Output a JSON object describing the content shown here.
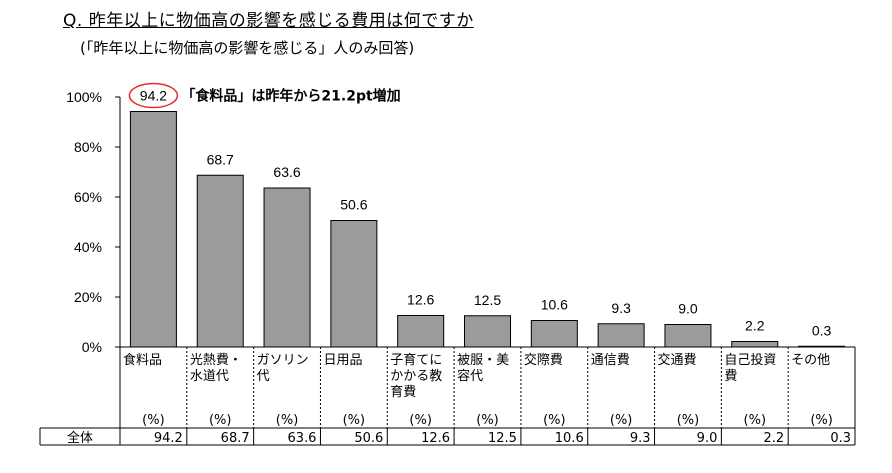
{
  "title": "Q. 昨年以上に物価高の影響を感じる費用は何ですか",
  "subtitle": "(「昨年以上に物価高の影響を感じる」人のみ回答)",
  "annotation": "「食料品」は昨年から21.2pt増加",
  "colors": {
    "bar": "#9b9b9b",
    "bar_border": "#000000",
    "circle": "#e0302a"
  },
  "chart_data": {
    "type": "bar",
    "categories": [
      [
        "食料品"
      ],
      [
        "光熱費・",
        "水道代"
      ],
      [
        "ガソリン",
        "代"
      ],
      [
        "日用品"
      ],
      [
        "子育てに",
        "かかる教",
        "育費"
      ],
      [
        "被服・美",
        "容代"
      ],
      [
        "交際費"
      ],
      [
        "通信費"
      ],
      [
        "交通費"
      ],
      [
        "自己投資",
        "費"
      ],
      [
        "その他"
      ]
    ],
    "values": [
      94.2,
      68.7,
      63.6,
      50.6,
      12.6,
      12.5,
      10.6,
      9.3,
      9.0,
      2.2,
      0.3
    ],
    "value_labels": [
      "94.2",
      "68.7",
      "63.6",
      "50.6",
      "12.6",
      "12.5",
      "10.6",
      "9.3",
      "9.0",
      "2.2",
      "0.3"
    ],
    "yticks": [
      "0%",
      "20%",
      "40%",
      "60%",
      "80%",
      "100%"
    ],
    "ylim": [
      0,
      100
    ],
    "table": {
      "unit": "(%)",
      "row_label": "全体",
      "values": [
        "94.2",
        "68.7",
        "63.6",
        "50.6",
        "12.6",
        "12.5",
        "10.6",
        "9.3",
        "9.0",
        "2.2",
        "0.3"
      ]
    }
  }
}
